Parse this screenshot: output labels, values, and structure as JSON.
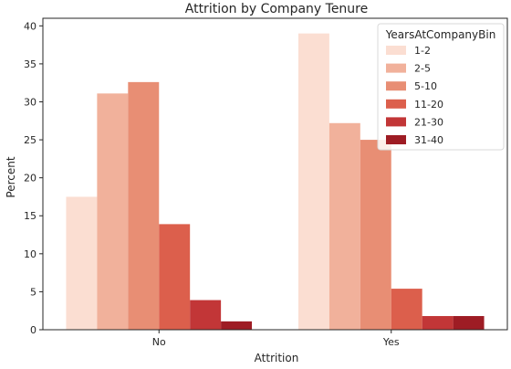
{
  "chart_data": {
    "type": "bar",
    "title": "Attrition by Company Tenure",
    "xlabel": "Attrition",
    "ylabel": "Percent",
    "categories": [
      "No",
      "Yes"
    ],
    "ylim": [
      0,
      41
    ],
    "yticks": [
      0,
      5,
      10,
      15,
      20,
      25,
      30,
      35,
      40
    ],
    "grid": false,
    "legend": {
      "title": "YearsAtCompanyBin",
      "placement": "top-right"
    },
    "series": [
      {
        "name": "1-2",
        "color": "#fbded2",
        "values": [
          17.5,
          39.0
        ]
      },
      {
        "name": "2-5",
        "color": "#f1b19b",
        "values": [
          31.1,
          27.2
        ]
      },
      {
        "name": "5-10",
        "color": "#e88e74",
        "values": [
          32.6,
          25.0
        ]
      },
      {
        "name": "11-20",
        "color": "#dc5f4c",
        "values": [
          13.9,
          5.4
        ]
      },
      {
        "name": "21-30",
        "color": "#c23637",
        "values": [
          3.9,
          1.8
        ]
      },
      {
        "name": "31-40",
        "color": "#9e1c24",
        "values": [
          1.1,
          1.8
        ]
      }
    ]
  }
}
